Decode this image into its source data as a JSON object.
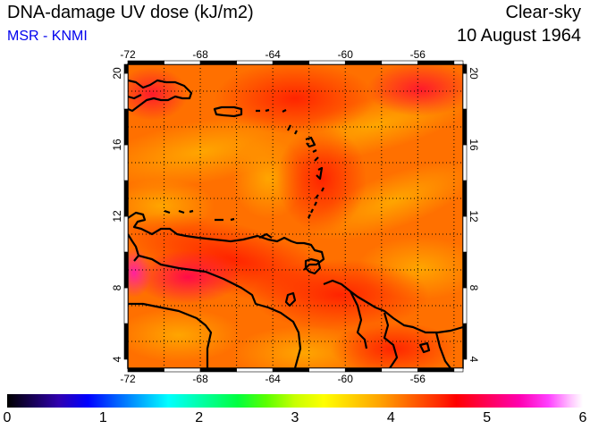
{
  "header": {
    "title": "DNA-damage UV dose (kJ/m2)",
    "subtitle": "MSR - KNMI",
    "condition": "Clear-sky",
    "date": "10 August 1964"
  },
  "map": {
    "lon_range": [
      -72,
      -53.5
    ],
    "lat_range": [
      3.5,
      20.5
    ],
    "lon_ticks": [
      "-72",
      "-68",
      "-64",
      "-60",
      "-56"
    ],
    "lat_ticks": [
      "4",
      "8",
      "12",
      "16",
      "20"
    ],
    "field_color_stops": [
      "#ff2800",
      "#ff5a00",
      "#ff8200",
      "#ffa000",
      "#ffb400",
      "#ff0070"
    ]
  },
  "colorbar": {
    "labels": [
      "0",
      "1",
      "2",
      "3",
      "4",
      "5",
      "6"
    ],
    "min": 0,
    "max": 6
  }
}
